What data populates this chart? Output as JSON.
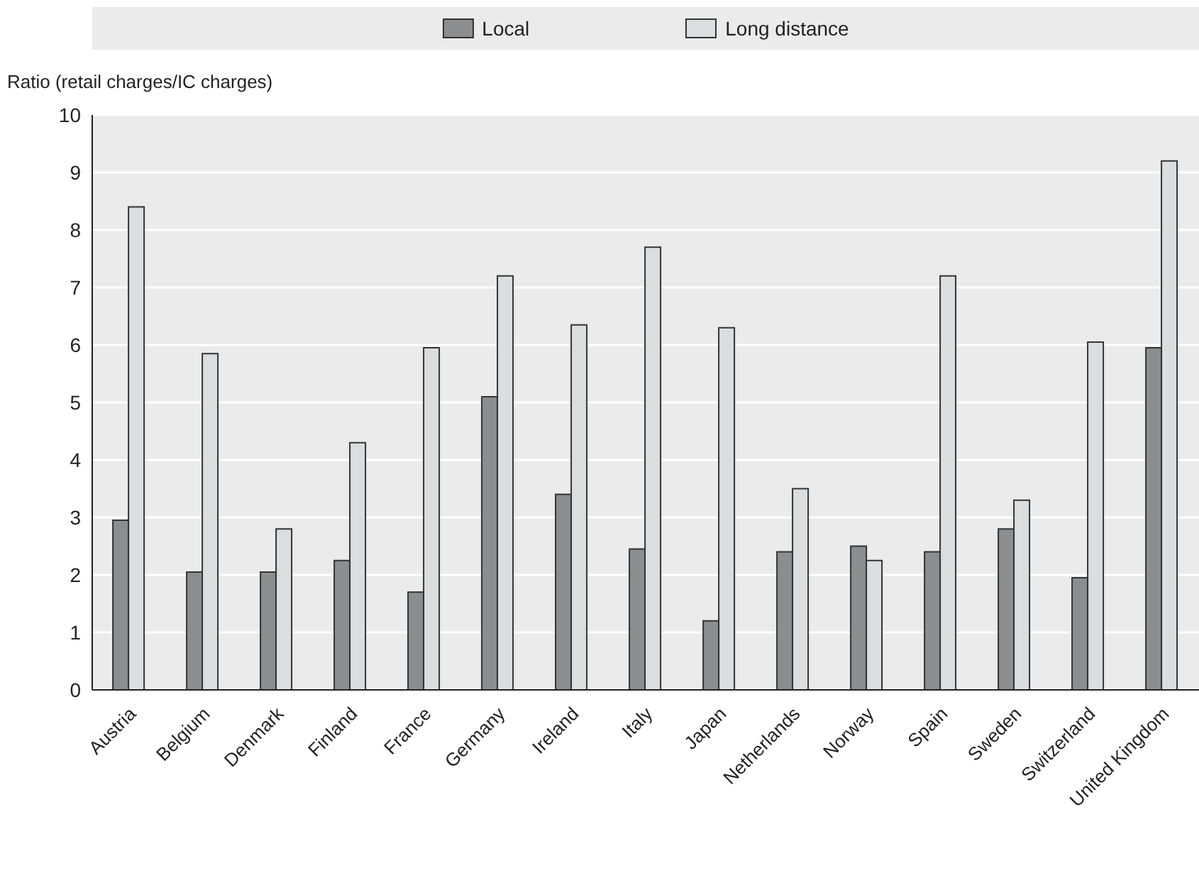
{
  "chart_data": {
    "type": "bar",
    "ylabel": "Ratio (retail charges/IC charges)",
    "categories": [
      "Austria",
      "Belgium",
      "Denmark",
      "Finland",
      "France",
      "Germany",
      "Ireland",
      "Italy",
      "Japan",
      "Netherlands",
      "Norway",
      "Spain",
      "Sweden",
      "Switzerland",
      "United Kingdom"
    ],
    "series": [
      {
        "name": "Local",
        "color": "#8c8d8e",
        "values": [
          2.95,
          2.05,
          2.05,
          2.25,
          1.7,
          5.1,
          3.4,
          2.45,
          1.2,
          2.4,
          2.5,
          2.4,
          2.8,
          1.95,
          5.95
        ]
      },
      {
        "name": "Long distance",
        "color": "#dcdddf",
        "values": [
          8.4,
          5.85,
          2.8,
          4.3,
          5.95,
          7.2,
          6.35,
          7.7,
          6.3,
          3.5,
          2.25,
          7.2,
          3.3,
          6.05,
          9.2
        ]
      }
    ],
    "ylim": [
      0,
      10
    ],
    "yticks": [
      0,
      1,
      2,
      3,
      4,
      5,
      6,
      7,
      8,
      9,
      10
    ],
    "grid": "y",
    "legend": "top"
  }
}
